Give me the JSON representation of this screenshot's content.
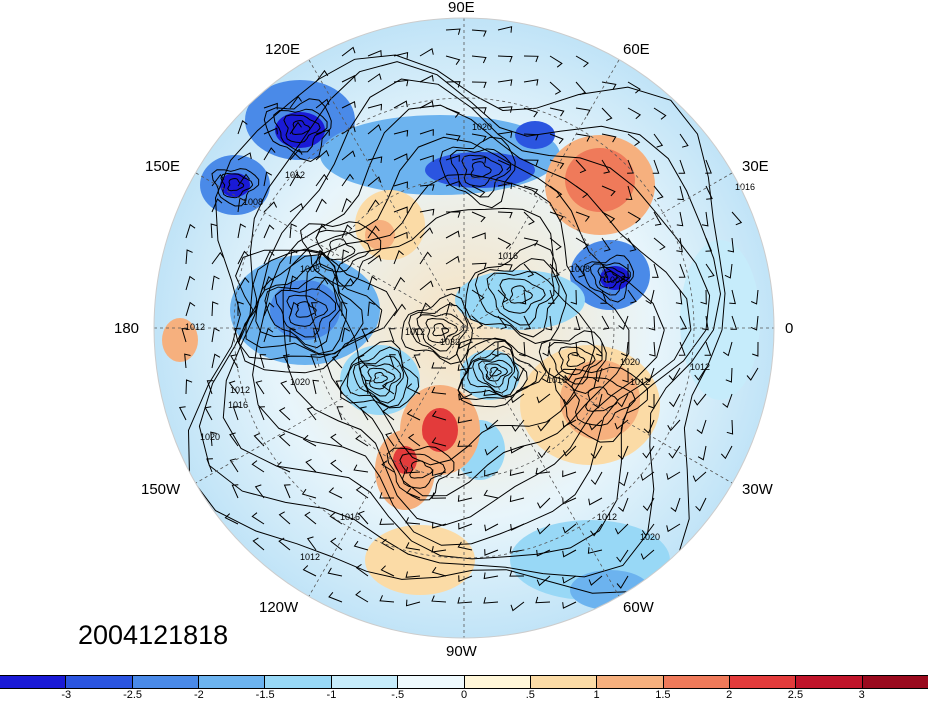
{
  "timestamp": "2004121818",
  "longitude_labels": {
    "e90": "90E",
    "e60": "60E",
    "e120": "120E",
    "e150": "150E",
    "e30": "30E",
    "lon180": "180",
    "lon0": "0",
    "w150": "150W",
    "w30": "30W",
    "w120": "120W",
    "w60": "60W",
    "w90": "90W"
  },
  "isobar_labels": [
    "1020",
    "1012",
    "1008",
    "1008",
    "1016",
    "1008",
    "1008",
    "1012",
    "1012",
    "1032",
    "1020",
    "1016",
    "1012",
    "1020",
    "1016",
    "1012",
    "1020",
    "1016",
    "1012",
    "1020",
    "1012",
    "1016",
    "1012"
  ],
  "colorbar": {
    "colors": [
      "#1a1ad6",
      "#2b55e0",
      "#4a8ae8",
      "#6cb3ef",
      "#98d8f6",
      "#c6ecfb",
      "#eef9fd",
      "#fff6d8",
      "#fbdba6",
      "#f6b07e",
      "#ef7a5a",
      "#e33b3b",
      "#c0142a",
      "#9a0a1e"
    ],
    "tick_labels": [
      "-3",
      "-2.5",
      "-2",
      "-1.5",
      "-1",
      "-.5",
      "0",
      ".5",
      "1",
      "1.5",
      "2",
      "2.5",
      "3"
    ]
  }
}
